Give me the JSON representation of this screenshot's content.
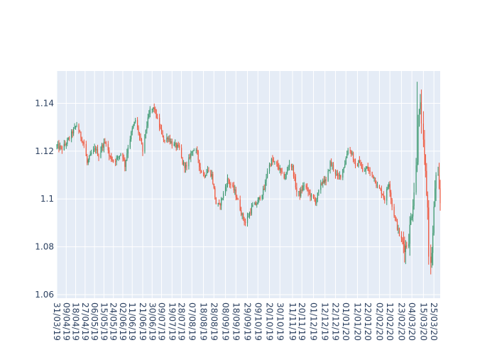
{
  "chart_data": {
    "type": "candlestick",
    "title": "",
    "xlabel": "",
    "ylabel": "",
    "ylim": [
      1.0585,
      1.1535
    ],
    "grid": true,
    "legend": "none",
    "colors": {
      "plot_background": "#e5ecf6",
      "gridline": "#ffffff",
      "increasing": "#3d9970",
      "decreasing": "#ef553b",
      "tick_text": "#2a3f5f"
    },
    "date_start": "2019-03-31",
    "date_end": "2020-03-31",
    "x_tick_labels": [
      "31/03/19",
      "09/04/19",
      "18/04/19",
      "27/04/19",
      "06/05/19",
      "15/05/19",
      "24/05/19",
      "02/06/19",
      "11/06/19",
      "21/06/19",
      "30/06/19",
      "09/07/19",
      "19/07/19",
      "28/07/19",
      "07/08/19",
      "18/08/19",
      "28/08/19",
      "08/09/19",
      "18/09/19",
      "29/09/19",
      "09/10/19",
      "20/10/19",
      "30/10/19",
      "11/11/19",
      "20/11/19",
      "01/12/19",
      "12/12/19",
      "22/12/19",
      "01/01/20",
      "12/01/20",
      "22/01/20",
      "02/02/20",
      "12/02/20",
      "23/02/20",
      "04/03/20",
      "15/03/20",
      "25/03/20"
    ],
    "y_ticks": [
      1.06,
      1.08,
      1.1,
      1.12,
      1.14
    ],
    "y_tick_labels": [
      "1.06",
      "1.08",
      "1.1",
      "1.12",
      "1.14"
    ],
    "close_path": [
      [
        "2019-03-31",
        1.122
      ],
      [
        "2019-04-05",
        1.121
      ],
      [
        "2019-04-10",
        1.124
      ],
      [
        "2019-04-15",
        1.128
      ],
      [
        "2019-04-19",
        1.131
      ],
      [
        "2019-04-22",
        1.127
      ],
      [
        "2019-04-26",
        1.123
      ],
      [
        "2019-04-29",
        1.115
      ],
      [
        "2019-05-03",
        1.119
      ],
      [
        "2019-05-07",
        1.121
      ],
      [
        "2019-05-10",
        1.118
      ],
      [
        "2019-05-13",
        1.122
      ],
      [
        "2019-05-17",
        1.124
      ],
      [
        "2019-05-20",
        1.118
      ],
      [
        "2019-05-24",
        1.116
      ],
      [
        "2019-05-28",
        1.117
      ],
      [
        "2019-06-01",
        1.12
      ],
      [
        "2019-06-04",
        1.114
      ],
      [
        "2019-06-07",
        1.122
      ],
      [
        "2019-06-11",
        1.129
      ],
      [
        "2019-06-14",
        1.133
      ],
      [
        "2019-06-18",
        1.126
      ],
      [
        "2019-06-21",
        1.12
      ],
      [
        "2019-06-24",
        1.129
      ],
      [
        "2019-06-28",
        1.137
      ],
      [
        "2019-07-02",
        1.138
      ],
      [
        "2019-07-05",
        1.133
      ],
      [
        "2019-07-08",
        1.129
      ],
      [
        "2019-07-12",
        1.124
      ],
      [
        "2019-07-15",
        1.126
      ],
      [
        "2019-07-19",
        1.123
      ],
      [
        "2019-07-23",
        1.122
      ],
      [
        "2019-07-26",
        1.121
      ],
      [
        "2019-07-29",
        1.115
      ],
      [
        "2019-08-02",
        1.113
      ],
      [
        "2019-08-05",
        1.118
      ],
      [
        "2019-08-08",
        1.121
      ],
      [
        "2019-08-12",
        1.119
      ],
      [
        "2019-08-15",
        1.112
      ],
      [
        "2019-08-19",
        1.11
      ],
      [
        "2019-08-22",
        1.112
      ],
      [
        "2019-08-26",
        1.11
      ],
      [
        "2019-08-30",
        1.098
      ],
      [
        "2019-09-02",
        1.097
      ],
      [
        "2019-09-06",
        1.102
      ],
      [
        "2019-09-10",
        1.108
      ],
      [
        "2019-09-13",
        1.106
      ],
      [
        "2019-09-17",
        1.103
      ],
      [
        "2019-09-20",
        1.099
      ],
      [
        "2019-09-24",
        1.093
      ],
      [
        "2019-09-27",
        1.09
      ],
      [
        "2019-10-01",
        1.094
      ],
      [
        "2019-10-04",
        1.097
      ],
      [
        "2019-10-08",
        1.098
      ],
      [
        "2019-10-11",
        1.101
      ],
      [
        "2019-10-15",
        1.104
      ],
      [
        "2019-10-18",
        1.112
      ],
      [
        "2019-10-22",
        1.116
      ],
      [
        "2019-10-25",
        1.115
      ],
      [
        "2019-10-29",
        1.113
      ],
      [
        "2019-11-01",
        1.11
      ],
      [
        "2019-11-04",
        1.109
      ],
      [
        "2019-11-08",
        1.115
      ],
      [
        "2019-11-11",
        1.113
      ],
      [
        "2019-11-15",
        1.103
      ],
      [
        "2019-11-18",
        1.102
      ],
      [
        "2019-11-22",
        1.106
      ],
      [
        "2019-11-26",
        1.103
      ],
      [
        "2019-11-29",
        1.101
      ],
      [
        "2019-12-03",
        1.099
      ],
      [
        "2019-12-06",
        1.103
      ],
      [
        "2019-12-10",
        1.108
      ],
      [
        "2019-12-13",
        1.107
      ],
      [
        "2019-12-17",
        1.115
      ],
      [
        "2019-12-20",
        1.113
      ],
      [
        "2019-12-24",
        1.109
      ],
      [
        "2019-12-27",
        1.11
      ],
      [
        "2019-12-31",
        1.115
      ],
      [
        "2020-01-03",
        1.121
      ],
      [
        "2020-01-07",
        1.119
      ],
      [
        "2020-01-10",
        1.113
      ],
      [
        "2020-01-14",
        1.116
      ],
      [
        "2020-01-17",
        1.111
      ],
      [
        "2020-01-21",
        1.113
      ],
      [
        "2020-01-24",
        1.111
      ],
      [
        "2020-01-28",
        1.109
      ],
      [
        "2020-01-31",
        1.105
      ],
      [
        "2020-02-04",
        1.103
      ],
      [
        "2020-02-07",
        1.1
      ],
      [
        "2020-02-11",
        1.107
      ],
      [
        "2020-02-14",
        1.097
      ],
      [
        "2020-02-18",
        1.09
      ],
      [
        "2020-02-21",
        1.085
      ],
      [
        "2020-02-24",
        1.082
      ],
      [
        "2020-02-27",
        1.08
      ],
      [
        "2020-03-01",
        1.084
      ],
      [
        "2020-03-04",
        1.095
      ],
      [
        "2020-03-07",
        1.108
      ],
      [
        "2020-03-09",
        1.118
      ],
      [
        "2020-03-10",
        1.133
      ],
      [
        "2020-03-12",
        1.138
      ],
      [
        "2020-03-14",
        1.128
      ],
      [
        "2020-03-17",
        1.11
      ],
      [
        "2020-03-19",
        1.096
      ],
      [
        "2020-03-20",
        1.078
      ],
      [
        "2020-03-21",
        1.066
      ],
      [
        "2020-03-22",
        1.072
      ],
      [
        "2020-03-24",
        1.085
      ],
      [
        "2020-03-26",
        1.105
      ],
      [
        "2020-03-28",
        1.112
      ],
      [
        "2020-03-31",
        1.098
      ]
    ],
    "notable_extremes": {
      "high": [
        "2020-03-09",
        1.149
      ],
      "low": [
        "2020-03-21",
        1.063
      ]
    }
  }
}
